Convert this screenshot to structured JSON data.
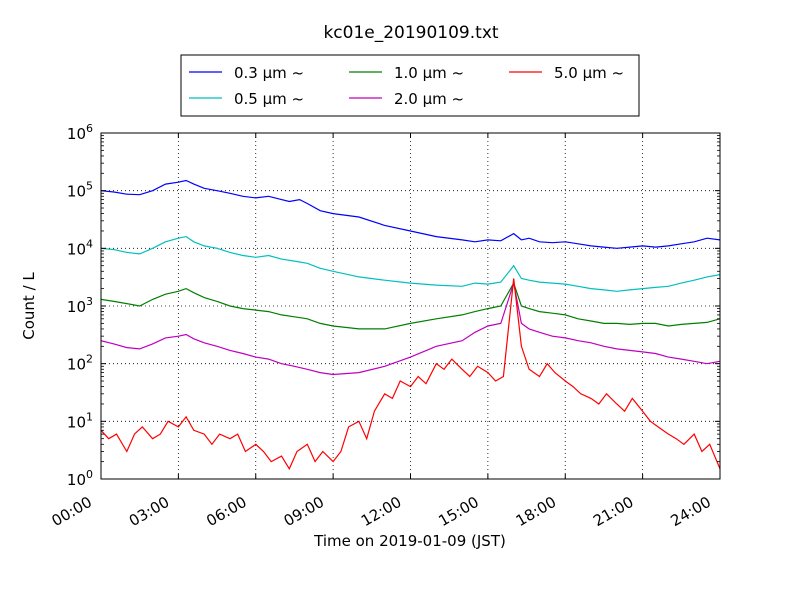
{
  "chart_data": {
    "type": "line",
    "title": "kc01e_20190109.txt",
    "xlabel": "Time on 2019-01-09 (JST)",
    "ylabel": "Count / L",
    "yscale": "log",
    "ylim": [
      1,
      1000000
    ],
    "xlim_hours": [
      0,
      24
    ],
    "grid": true,
    "legend_position": "top-center",
    "x_ticks": [
      {
        "hours": 0,
        "label": "00:00"
      },
      {
        "hours": 3,
        "label": "03:00"
      },
      {
        "hours": 6,
        "label": "06:00"
      },
      {
        "hours": 9,
        "label": "09:00"
      },
      {
        "hours": 12,
        "label": "12:00"
      },
      {
        "hours": 15,
        "label": "15:00"
      },
      {
        "hours": 18,
        "label": "18:00"
      },
      {
        "hours": 21,
        "label": "21:00"
      },
      {
        "hours": 24,
        "label": "24:00"
      }
    ],
    "y_ticks": [
      {
        "value": 1,
        "base": "10",
        "exp": "0"
      },
      {
        "value": 10,
        "base": "10",
        "exp": "1"
      },
      {
        "value": 100,
        "base": "10",
        "exp": "2"
      },
      {
        "value": 1000,
        "base": "10",
        "exp": "3"
      },
      {
        "value": 10000,
        "base": "10",
        "exp": "4"
      },
      {
        "value": 100000,
        "base": "10",
        "exp": "5"
      },
      {
        "value": 1000000,
        "base": "10",
        "exp": "6"
      }
    ],
    "series": [
      {
        "name": "0.3 μm ~",
        "color": "#0000ff",
        "points": [
          [
            0,
            100000
          ],
          [
            0.5,
            95000
          ],
          [
            1,
            87000
          ],
          [
            1.5,
            85000
          ],
          [
            2,
            100000
          ],
          [
            2.5,
            130000
          ],
          [
            3,
            140000
          ],
          [
            3.3,
            150000
          ],
          [
            3.6,
            130000
          ],
          [
            4,
            110000
          ],
          [
            4.5,
            100000
          ],
          [
            5,
            90000
          ],
          [
            5.5,
            80000
          ],
          [
            6,
            75000
          ],
          [
            6.5,
            80000
          ],
          [
            7,
            70000
          ],
          [
            7.3,
            65000
          ],
          [
            7.7,
            70000
          ],
          [
            8,
            60000
          ],
          [
            8.5,
            45000
          ],
          [
            9,
            40000
          ],
          [
            10,
            35000
          ],
          [
            11,
            25000
          ],
          [
            12,
            20000
          ],
          [
            13,
            16000
          ],
          [
            14,
            14000
          ],
          [
            14.5,
            13000
          ],
          [
            15,
            14000
          ],
          [
            15.5,
            13500
          ],
          [
            16,
            18000
          ],
          [
            16.3,
            14000
          ],
          [
            16.6,
            15000
          ],
          [
            17,
            13000
          ],
          [
            17.5,
            12500
          ],
          [
            18,
            13000
          ],
          [
            18.5,
            12000
          ],
          [
            19,
            11000
          ],
          [
            19.5,
            10500
          ],
          [
            20,
            10000
          ],
          [
            20.5,
            10500
          ],
          [
            21,
            11000
          ],
          [
            21.5,
            10500
          ],
          [
            22,
            11000
          ],
          [
            22.5,
            12000
          ],
          [
            23,
            13000
          ],
          [
            23.5,
            15000
          ],
          [
            24,
            14000
          ]
        ]
      },
      {
        "name": "0.5 μm ~",
        "color": "#00bfbf",
        "points": [
          [
            0,
            10000
          ],
          [
            0.5,
            9500
          ],
          [
            1,
            8500
          ],
          [
            1.5,
            8000
          ],
          [
            2,
            10000
          ],
          [
            2.5,
            13000
          ],
          [
            3,
            15000
          ],
          [
            3.3,
            16000
          ],
          [
            3.6,
            13000
          ],
          [
            4,
            11000
          ],
          [
            4.5,
            10000
          ],
          [
            5,
            8500
          ],
          [
            5.5,
            7500
          ],
          [
            6,
            7000
          ],
          [
            6.5,
            7500
          ],
          [
            7,
            6500
          ],
          [
            7.5,
            6000
          ],
          [
            8,
            5500
          ],
          [
            8.5,
            4500
          ],
          [
            9,
            4000
          ],
          [
            10,
            3200
          ],
          [
            11,
            2800
          ],
          [
            12,
            2500
          ],
          [
            13,
            2300
          ],
          [
            14,
            2200
          ],
          [
            14.5,
            2500
          ],
          [
            15,
            2400
          ],
          [
            15.5,
            2600
          ],
          [
            16,
            5000
          ],
          [
            16.3,
            3000
          ],
          [
            16.6,
            2800
          ],
          [
            17,
            2600
          ],
          [
            17.5,
            2500
          ],
          [
            18,
            2400
          ],
          [
            18.5,
            2200
          ],
          [
            19,
            2000
          ],
          [
            19.5,
            1900
          ],
          [
            20,
            1800
          ],
          [
            20.5,
            1900
          ],
          [
            21,
            2000
          ],
          [
            21.5,
            2100
          ],
          [
            22,
            2200
          ],
          [
            22.5,
            2500
          ],
          [
            23,
            2800
          ],
          [
            23.5,
            3200
          ],
          [
            24,
            3500
          ]
        ]
      },
      {
        "name": "1.0 μm ~",
        "color": "#008000",
        "points": [
          [
            0,
            1300
          ],
          [
            0.5,
            1200
          ],
          [
            1,
            1100
          ],
          [
            1.5,
            1000
          ],
          [
            2,
            1300
          ],
          [
            2.5,
            1600
          ],
          [
            3,
            1800
          ],
          [
            3.3,
            2000
          ],
          [
            3.6,
            1700
          ],
          [
            4,
            1400
          ],
          [
            4.5,
            1200
          ],
          [
            5,
            1000
          ],
          [
            5.5,
            900
          ],
          [
            6,
            850
          ],
          [
            6.5,
            800
          ],
          [
            7,
            700
          ],
          [
            7.5,
            650
          ],
          [
            8,
            600
          ],
          [
            8.5,
            500
          ],
          [
            9,
            450
          ],
          [
            10,
            400
          ],
          [
            11,
            400
          ],
          [
            12,
            500
          ],
          [
            13,
            600
          ],
          [
            14,
            700
          ],
          [
            14.5,
            800
          ],
          [
            15,
            900
          ],
          [
            15.5,
            1000
          ],
          [
            16,
            2500
          ],
          [
            16.3,
            1000
          ],
          [
            16.6,
            900
          ],
          [
            17,
            800
          ],
          [
            17.5,
            750
          ],
          [
            18,
            700
          ],
          [
            18.5,
            600
          ],
          [
            19,
            550
          ],
          [
            19.5,
            500
          ],
          [
            20,
            500
          ],
          [
            20.5,
            480
          ],
          [
            21,
            500
          ],
          [
            21.5,
            500
          ],
          [
            22,
            450
          ],
          [
            22.5,
            480
          ],
          [
            23,
            500
          ],
          [
            23.5,
            520
          ],
          [
            24,
            600
          ]
        ]
      },
      {
        "name": "2.0 μm ~",
        "color": "#bf00bf",
        "points": [
          [
            0,
            250
          ],
          [
            0.5,
            220
          ],
          [
            1,
            190
          ],
          [
            1.5,
            180
          ],
          [
            2,
            220
          ],
          [
            2.5,
            280
          ],
          [
            3,
            300
          ],
          [
            3.3,
            320
          ],
          [
            3.6,
            270
          ],
          [
            4,
            230
          ],
          [
            4.5,
            200
          ],
          [
            5,
            170
          ],
          [
            5.5,
            150
          ],
          [
            6,
            130
          ],
          [
            6.5,
            120
          ],
          [
            7,
            100
          ],
          [
            7.5,
            90
          ],
          [
            8,
            80
          ],
          [
            8.5,
            70
          ],
          [
            9,
            65
          ],
          [
            10,
            70
          ],
          [
            11,
            90
          ],
          [
            12,
            130
          ],
          [
            13,
            200
          ],
          [
            14,
            250
          ],
          [
            14.5,
            350
          ],
          [
            15,
            450
          ],
          [
            15.5,
            500
          ],
          [
            16,
            2500
          ],
          [
            16.3,
            500
          ],
          [
            16.6,
            400
          ],
          [
            17,
            350
          ],
          [
            17.5,
            300
          ],
          [
            18,
            280
          ],
          [
            18.5,
            250
          ],
          [
            19,
            230
          ],
          [
            19.5,
            200
          ],
          [
            20,
            180
          ],
          [
            20.5,
            170
          ],
          [
            21,
            160
          ],
          [
            21.5,
            150
          ],
          [
            22,
            130
          ],
          [
            22.5,
            120
          ],
          [
            23,
            110
          ],
          [
            23.5,
            100
          ],
          [
            24,
            110
          ]
        ]
      },
      {
        "name": "5.0 μm ~",
        "color": "#ff0000",
        "points": [
          [
            0,
            7
          ],
          [
            0.3,
            5
          ],
          [
            0.6,
            6
          ],
          [
            1,
            3
          ],
          [
            1.3,
            6
          ],
          [
            1.6,
            8
          ],
          [
            2,
            5
          ],
          [
            2.3,
            6
          ],
          [
            2.6,
            10
          ],
          [
            3,
            8
          ],
          [
            3.3,
            12
          ],
          [
            3.6,
            7
          ],
          [
            4,
            6
          ],
          [
            4.3,
            4
          ],
          [
            4.6,
            6
          ],
          [
            5,
            5
          ],
          [
            5.3,
            6
          ],
          [
            5.6,
            3
          ],
          [
            6,
            4
          ],
          [
            6.3,
            3
          ],
          [
            6.6,
            2
          ],
          [
            7,
            2.5
          ],
          [
            7.3,
            1.5
          ],
          [
            7.6,
            3
          ],
          [
            8,
            4
          ],
          [
            8.3,
            2
          ],
          [
            8.6,
            3
          ],
          [
            9,
            2
          ],
          [
            9.3,
            3
          ],
          [
            9.6,
            8
          ],
          [
            10,
            10
          ],
          [
            10.3,
            5
          ],
          [
            10.6,
            15
          ],
          [
            11,
            30
          ],
          [
            11.3,
            25
          ],
          [
            11.6,
            50
          ],
          [
            12,
            40
          ],
          [
            12.3,
            60
          ],
          [
            12.6,
            45
          ],
          [
            13,
            100
          ],
          [
            13.3,
            80
          ],
          [
            13.6,
            120
          ],
          [
            14,
            80
          ],
          [
            14.3,
            60
          ],
          [
            14.6,
            90
          ],
          [
            15,
            70
          ],
          [
            15.3,
            50
          ],
          [
            15.6,
            60
          ],
          [
            16,
            3000
          ],
          [
            16.3,
            200
          ],
          [
            16.6,
            80
          ],
          [
            17,
            60
          ],
          [
            17.3,
            100
          ],
          [
            17.6,
            70
          ],
          [
            18,
            50
          ],
          [
            18.3,
            40
          ],
          [
            18.6,
            30
          ],
          [
            19,
            25
          ],
          [
            19.3,
            20
          ],
          [
            19.6,
            30
          ],
          [
            20,
            20
          ],
          [
            20.3,
            15
          ],
          [
            20.6,
            25
          ],
          [
            21,
            15
          ],
          [
            21.3,
            10
          ],
          [
            21.6,
            8
          ],
          [
            22,
            6
          ],
          [
            22.3,
            5
          ],
          [
            22.6,
            4
          ],
          [
            23,
            6
          ],
          [
            23.3,
            3
          ],
          [
            23.6,
            4
          ],
          [
            24,
            1.5
          ]
        ]
      }
    ]
  }
}
